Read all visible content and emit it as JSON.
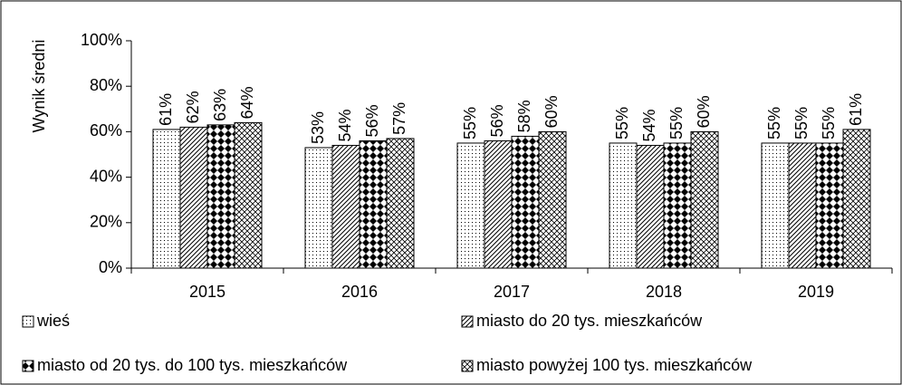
{
  "chart_data": {
    "type": "bar",
    "y_label": "Wynik średni",
    "categories": [
      "2015",
      "2016",
      "2017",
      "2018",
      "2019"
    ],
    "series": [
      {
        "name": "wieś",
        "color": "#000000",
        "pattern": "dots",
        "values": [
          61,
          53,
          55,
          55,
          55
        ],
        "value_labels": [
          "61%",
          "53%",
          "55%",
          "55%",
          "55%"
        ]
      },
      {
        "name": "miasto do 20 tys. mieszkańców",
        "color": "#000000",
        "pattern": "diagonal",
        "values": [
          62,
          54,
          56,
          54,
          55
        ],
        "value_labels": [
          "62%",
          "54%",
          "56%",
          "54%",
          "55%"
        ]
      },
      {
        "name": "miasto od 20 tys. do 100 tys. mieszkańców",
        "color": "#000000",
        "pattern": "checker",
        "values": [
          63,
          56,
          58,
          55,
          55
        ],
        "value_labels": [
          "63%",
          "56%",
          "58%",
          "55%",
          "55%"
        ]
      },
      {
        "name": "miasto powyżej 100 tys. mieszkańców",
        "color": "#000000",
        "pattern": "crosshatch",
        "values": [
          64,
          57,
          60,
          60,
          61
        ],
        "value_labels": [
          "64%",
          "57%",
          "60%",
          "60%",
          "61%"
        ]
      }
    ],
    "ylim": [
      0,
      100
    ],
    "yticks": [
      {
        "value": 0,
        "label": "0%"
      },
      {
        "value": 20,
        "label": "20%"
      },
      {
        "value": 40,
        "label": "40%"
      },
      {
        "value": 60,
        "label": "60%"
      },
      {
        "value": 80,
        "label": "80%"
      },
      {
        "value": 100,
        "label": "100%"
      }
    ],
    "grid": false,
    "legend": "bottom"
  }
}
